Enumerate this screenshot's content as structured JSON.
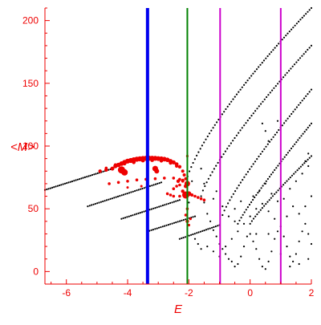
{
  "chart_data": {
    "type": "scatter",
    "xlabel": "E",
    "ylabel": "<M>",
    "xlim": [
      -6.7,
      2.0
    ],
    "ylim": [
      -10,
      210
    ],
    "x_ticks": [
      -6,
      -4,
      -2,
      0,
      2
    ],
    "x_tick_labels": [
      "-6",
      "-4",
      "-2",
      "0",
      "2"
    ],
    "y_ticks": [
      0,
      50,
      100,
      150,
      200
    ],
    "y_tick_labels": [
      "0",
      "50",
      "100",
      "150",
      "200"
    ],
    "grid": false,
    "axis_color": "#ee0000",
    "point_color": "#000000",
    "highlight_color": "#ee0000",
    "vertical_lines": [
      {
        "x": -3.35,
        "color": "#0000ee"
      },
      {
        "x": -2.05,
        "color": "#008000"
      },
      {
        "x": -0.98,
        "color": "#cc00cc"
      },
      {
        "x": 1.0,
        "color": "#cc00cc"
      }
    ],
    "series": [
      {
        "type": "line-dots",
        "x0": -6.7,
        "y0": 65,
        "x1": -4.5,
        "y1": 82,
        "n": 38
      },
      {
        "type": "line-dots",
        "x0": -5.3,
        "y0": 52,
        "x1": -2.9,
        "y1": 71,
        "n": 40
      },
      {
        "type": "line-dots",
        "x0": -4.2,
        "y0": 42,
        "x1": -2.3,
        "y1": 57,
        "n": 32
      },
      {
        "type": "line-dots",
        "x0": -3.35,
        "y0": 32,
        "x1": -1.8,
        "y1": 44,
        "n": 26
      },
      {
        "type": "line-dots",
        "x0": -2.3,
        "y0": 26,
        "x1": -1.0,
        "y1": 37,
        "n": 22
      },
      {
        "type": "curve-dots",
        "x0": -2.1,
        "y0": 70,
        "x1": 2.0,
        "y1": 210,
        "curv": 0.25,
        "n": 70
      },
      {
        "type": "curve-dots",
        "x0": -1.6,
        "y0": 60,
        "x1": 2.0,
        "y1": 180,
        "curv": 0.2,
        "n": 60
      },
      {
        "type": "curve-dots",
        "x0": -0.9,
        "y0": 45,
        "x1": 2.0,
        "y1": 145,
        "curv": 0.15,
        "n": 50
      },
      {
        "type": "curve-dots",
        "x0": -0.4,
        "y0": 38,
        "x1": 2.0,
        "y1": 118,
        "curv": 0.1,
        "n": 45
      },
      {
        "type": "curve-dots",
        "x0": 0.0,
        "y0": 38,
        "x1": 2.0,
        "y1": 92,
        "curv": 0.1,
        "n": 36
      }
    ],
    "scatter_extra": [
      [
        -2.0,
        55
      ],
      [
        -1.9,
        72
      ],
      [
        -1.6,
        82
      ],
      [
        -1.5,
        70
      ],
      [
        -1.5,
        55
      ],
      [
        -1.4,
        46
      ],
      [
        -1.3,
        40
      ],
      [
        -1.2,
        33
      ],
      [
        -1.1,
        28
      ],
      [
        -1.0,
        22
      ],
      [
        -0.9,
        18
      ],
      [
        -0.8,
        14
      ],
      [
        -0.7,
        10
      ],
      [
        -0.6,
        8
      ],
      [
        -0.5,
        4
      ],
      [
        -0.4,
        6
      ],
      [
        -0.3,
        12
      ],
      [
        -0.2,
        20
      ],
      [
        -0.1,
        28
      ],
      [
        0.0,
        30
      ],
      [
        0.1,
        24
      ],
      [
        0.2,
        18
      ],
      [
        0.3,
        10
      ],
      [
        0.4,
        4
      ],
      [
        0.5,
        2
      ],
      [
        0.6,
        8
      ],
      [
        0.7,
        16
      ],
      [
        0.8,
        26
      ],
      [
        0.9,
        32
      ],
      [
        1.1,
        28
      ],
      [
        1.2,
        20
      ],
      [
        1.3,
        12
      ],
      [
        1.4,
        8
      ],
      [
        1.5,
        14
      ],
      [
        1.6,
        24
      ],
      [
        1.7,
        32
      ],
      [
        1.8,
        38
      ],
      [
        1.9,
        30
      ],
      [
        2.0,
        22
      ],
      [
        -1.8,
        26
      ],
      [
        -1.7,
        22
      ],
      [
        -1.6,
        18
      ],
      [
        -1.4,
        20
      ],
      [
        -1.2,
        16
      ],
      [
        -1.0,
        12
      ],
      [
        -0.8,
        20
      ],
      [
        -0.6,
        26
      ],
      [
        -0.4,
        32
      ],
      [
        -0.2,
        38
      ],
      [
        0.0,
        44
      ],
      [
        0.2,
        50
      ],
      [
        0.4,
        54
      ],
      [
        0.6,
        48
      ],
      [
        0.8,
        42
      ],
      [
        1.0,
        36
      ],
      [
        1.2,
        44
      ],
      [
        1.4,
        52
      ],
      [
        1.6,
        46
      ],
      [
        1.8,
        52
      ],
      [
        2.0,
        60
      ],
      [
        -1.2,
        58
      ],
      [
        -1.1,
        64
      ],
      [
        -0.9,
        52
      ],
      [
        -0.7,
        44
      ],
      [
        -0.5,
        50
      ],
      [
        -0.3,
        56
      ],
      [
        0.1,
        60
      ],
      [
        0.3,
        64
      ],
      [
        0.5,
        70
      ],
      [
        0.7,
        62
      ],
      [
        0.9,
        56
      ],
      [
        1.1,
        58
      ],
      [
        1.3,
        66
      ],
      [
        1.5,
        72
      ],
      [
        1.7,
        78
      ],
      [
        1.9,
        84
      ],
      [
        0.4,
        118
      ],
      [
        0.5,
        112
      ],
      [
        0.6,
        104
      ],
      [
        0.9,
        120
      ],
      [
        1.8,
        88
      ],
      [
        1.9,
        94
      ],
      [
        -0.5,
        40
      ],
      [
        0.2,
        30
      ],
      [
        0.6,
        30
      ],
      [
        1.0,
        14
      ],
      [
        1.3,
        4
      ],
      [
        1.6,
        6
      ],
      [
        1.9,
        10
      ]
    ],
    "highlight_points": [
      [
        -4.9,
        80,
        2.2
      ],
      [
        -4.7,
        81,
        2.3
      ],
      [
        -4.5,
        82,
        2.5
      ],
      [
        -4.4,
        84,
        2.6
      ],
      [
        -4.3,
        85,
        2.8
      ],
      [
        -4.2,
        86,
        2.9
      ],
      [
        -4.1,
        87,
        3.0
      ],
      [
        -4.0,
        88,
        3.1
      ],
      [
        -3.9,
        88.5,
        3.1
      ],
      [
        -3.8,
        89,
        3.2
      ],
      [
        -3.7,
        89.5,
        3.2
      ],
      [
        -3.6,
        89.8,
        3.2
      ],
      [
        -3.5,
        90,
        3.2
      ],
      [
        -3.4,
        90.2,
        3.2
      ],
      [
        -3.3,
        90.3,
        3.2
      ],
      [
        -3.2,
        90.3,
        3.1
      ],
      [
        -3.1,
        90.2,
        3.1
      ],
      [
        -3.0,
        90,
        3.0
      ],
      [
        -2.9,
        89.8,
        3.0
      ],
      [
        -2.8,
        89.6,
        2.9
      ],
      [
        -2.7,
        89,
        2.8
      ],
      [
        -2.6,
        88,
        2.7
      ],
      [
        -2.5,
        87,
        2.6
      ],
      [
        -2.4,
        85.5,
        2.4
      ],
      [
        -2.3,
        83.5,
        2.2
      ],
      [
        -2.2,
        80,
        2.0
      ],
      [
        -2.15,
        77,
        2.0
      ],
      [
        -2.1,
        74,
        2.0
      ],
      [
        -4.7,
        82.5,
        1.8
      ],
      [
        -4.4,
        85,
        2.0
      ],
      [
        -4.1,
        86,
        2.2
      ],
      [
        -3.8,
        87,
        2.3
      ],
      [
        -3.5,
        88.5,
        2.4
      ],
      [
        -3.2,
        88.8,
        2.4
      ],
      [
        -2.9,
        88.3,
        2.3
      ],
      [
        -2.6,
        86.5,
        2.1
      ],
      [
        -2.4,
        84,
        2.0
      ],
      [
        -4.2,
        81,
        4.5
      ],
      [
        -4.1,
        79,
        4.0
      ],
      [
        -3.1,
        82,
        3.5
      ],
      [
        -3.05,
        80,
        3.0
      ],
      [
        -4.6,
        70,
        1.8
      ],
      [
        -4.3,
        71,
        1.8
      ],
      [
        -4.0,
        72,
        1.8
      ],
      [
        -3.7,
        73,
        1.8
      ],
      [
        -3.4,
        73.5,
        1.8
      ],
      [
        -3.1,
        74,
        1.8
      ],
      [
        -2.8,
        74.5,
        1.8
      ],
      [
        -2.5,
        74.5,
        1.8
      ],
      [
        -2.3,
        73.5,
        1.8
      ],
      [
        -2.2,
        72,
        1.8
      ],
      [
        -2.3,
        69,
        1.8
      ],
      [
        -2.4,
        68,
        1.8
      ],
      [
        -2.5,
        66,
        1.8
      ],
      [
        -3.55,
        68,
        1.5
      ],
      [
        -4.0,
        67,
        1.5
      ],
      [
        -2.35,
        72,
        2.2
      ],
      [
        -2.2,
        72.5,
        2.2
      ],
      [
        -2.1,
        68,
        2.5
      ],
      [
        -2.05,
        70,
        3.5
      ],
      [
        -2.2,
        64,
        2.2
      ],
      [
        -2.1,
        61,
        4.5
      ],
      [
        -2.0,
        62,
        3.0
      ],
      [
        -1.9,
        61,
        2.0
      ],
      [
        -1.8,
        60,
        1.8
      ],
      [
        -1.7,
        59,
        1.8
      ],
      [
        -1.6,
        58,
        1.8
      ],
      [
        -1.5,
        57,
        1.8
      ],
      [
        -2.6,
        61,
        1.8
      ],
      [
        -2.5,
        60,
        1.8
      ],
      [
        -2.3,
        60,
        1.8
      ],
      [
        -2.7,
        62,
        1.8
      ],
      [
        -2.1,
        45,
        1.8
      ],
      [
        -2.05,
        40,
        2.2
      ],
      [
        -2.05,
        50,
        1.8
      ],
      [
        -2.05,
        92,
        1.6
      ],
      [
        -2.0,
        37,
        1.6
      ],
      [
        -1.95,
        42,
        1.6
      ]
    ]
  }
}
